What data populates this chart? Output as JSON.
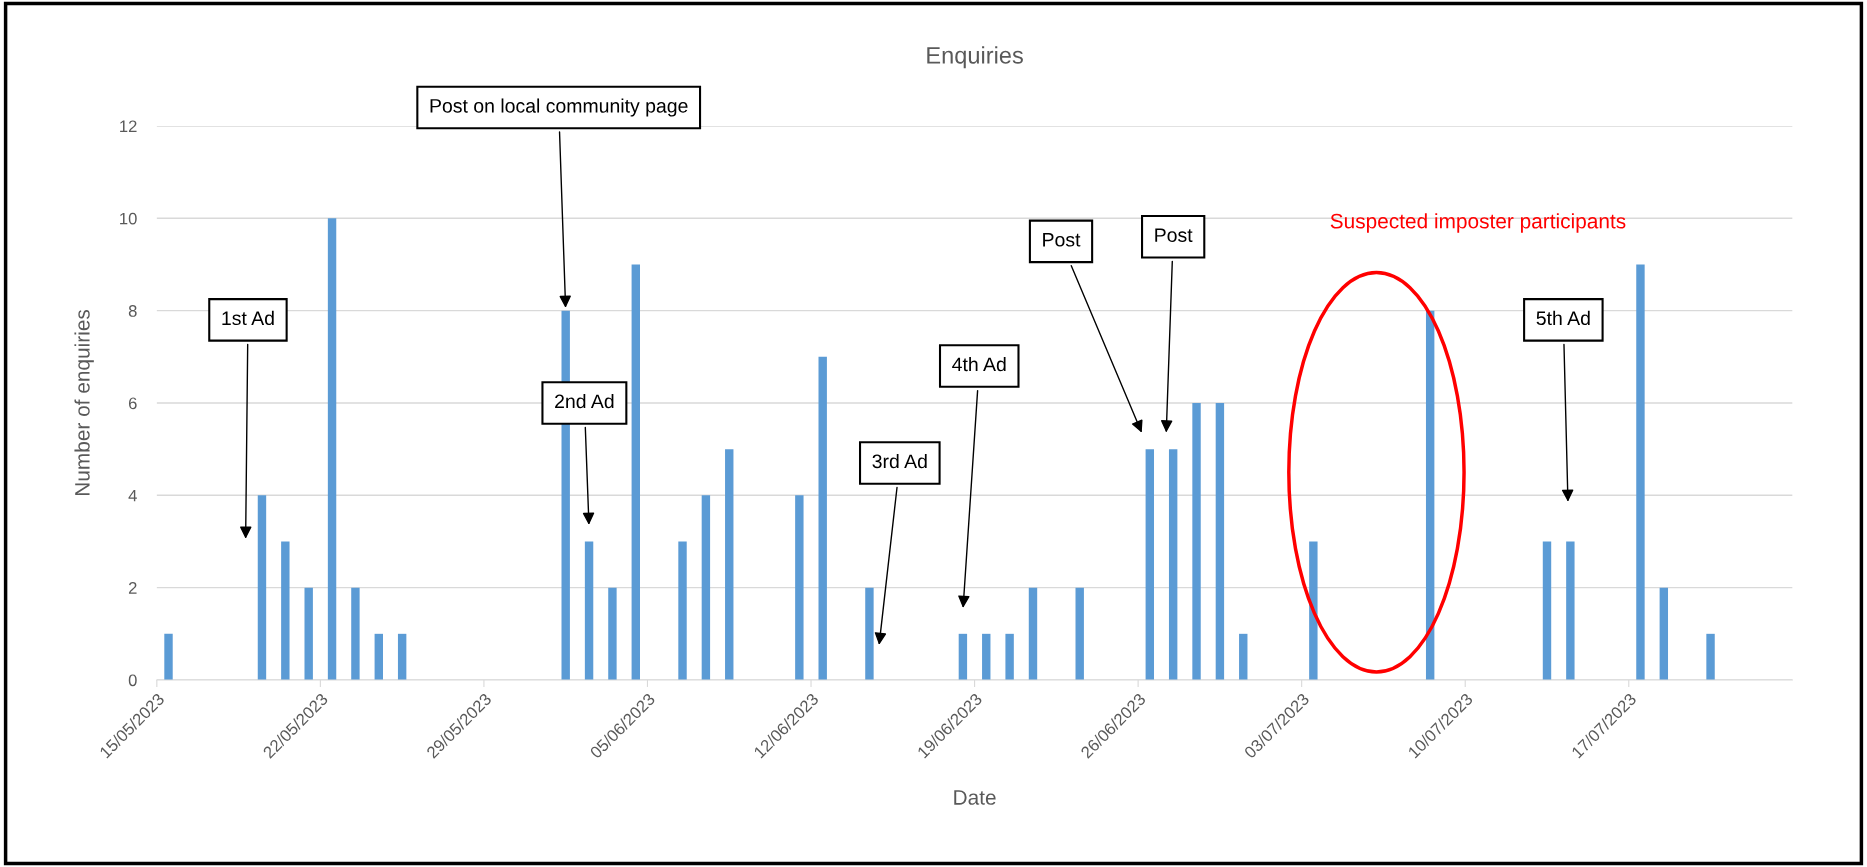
{
  "chart_data": {
    "type": "bar",
    "title": "Enquiries",
    "xlabel": "Date",
    "ylabel": "Number of enquiries",
    "x": [
      "2023-05-15T12:00",
      "2023-05-19T12:00",
      "2023-05-20T12:00",
      "2023-05-21T12:00",
      "2023-05-22T12:00",
      "2023-05-23T12:00",
      "2023-05-24T12:00",
      "2023-05-25T12:00",
      "2023-06-01T12:00",
      "2023-06-02T12:00",
      "2023-06-03T12:00",
      "2023-06-04T12:00",
      "2023-06-06T12:00",
      "2023-06-07T12:00",
      "2023-06-08T12:00",
      "2023-06-11T12:00",
      "2023-06-12T12:00",
      "2023-06-14T12:00",
      "2023-06-18T12:00",
      "2023-06-19T12:00",
      "2023-06-20T12:00",
      "2023-06-21T12:00",
      "2023-06-23T12:00",
      "2023-06-26T12:00",
      "2023-06-27T12:00",
      "2023-06-28T12:00",
      "2023-06-29T12:00",
      "2023-06-30T12:00",
      "2023-07-03T12:00",
      "2023-07-08T12:00",
      "2023-07-13T12:00",
      "2023-07-14T12:00",
      "2023-07-17T12:00",
      "2023-07-18T12:00",
      "2023-07-20T12:00"
    ],
    "values": [
      1,
      4,
      3,
      2,
      10,
      2,
      1,
      1,
      8,
      3,
      2,
      9,
      3,
      4,
      5,
      4,
      7,
      2,
      1,
      1,
      1,
      2,
      2,
      5,
      5,
      6,
      6,
      1,
      3,
      8,
      3,
      3,
      9,
      2,
      1
    ],
    "color": "#5b9bd5",
    "xlim": [
      "2023-05-15",
      "2023-07-24"
    ],
    "xticks": [
      {
        "value": "2023-05-15",
        "label": "15/05/2023"
      },
      {
        "value": "2023-05-22",
        "label": "22/05/2023"
      },
      {
        "value": "2023-05-29",
        "label": "29/05/2023"
      },
      {
        "value": "2023-06-05",
        "label": "05/06/2023"
      },
      {
        "value": "2023-06-12",
        "label": "12/06/2023"
      },
      {
        "value": "2023-06-19",
        "label": "19/06/2023"
      },
      {
        "value": "2023-06-26",
        "label": "26/06/2023"
      },
      {
        "value": "2023-07-03",
        "label": "03/07/2023"
      },
      {
        "value": "2023-07-10",
        "label": "10/07/2023"
      },
      {
        "value": "2023-07-17",
        "label": "17/07/2023"
      }
    ],
    "ylim": [
      0,
      12
    ],
    "yticks": [
      0,
      2,
      4,
      6,
      8,
      10,
      12
    ],
    "grid": "y",
    "legend": false,
    "annotations": [
      "1st Ad",
      "Post on local community page",
      "2nd Ad",
      "3rd Ad",
      "4th Ad",
      "Post",
      "Post",
      "5th Ad",
      "Suspected imposter participants"
    ]
  }
}
